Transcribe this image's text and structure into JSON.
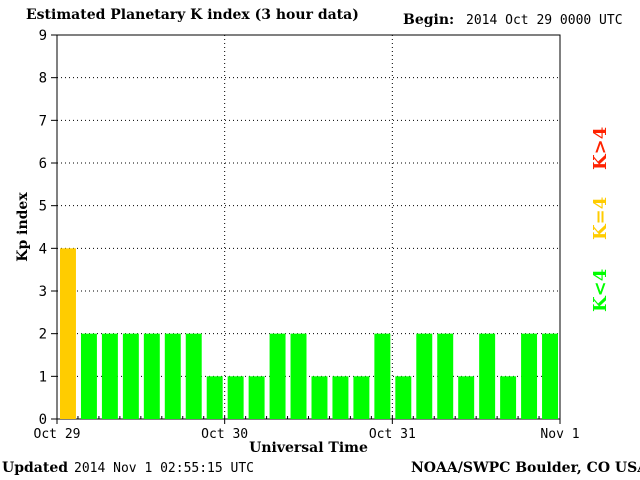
{
  "header": {
    "title": "Estimated Planetary K index (3 hour data)",
    "begin_label": "Begin:",
    "begin_value": "2014 Oct 29 0000 UTC"
  },
  "footer": {
    "updated_label": "Updated",
    "updated_value": "2014 Nov  1 02:55:15 UTC",
    "source": "NOAA/SWPC Boulder, CO USA"
  },
  "legend": {
    "above": "K>4",
    "equal": "K=4",
    "below": "K<4"
  },
  "colors": {
    "below": "#00ff00",
    "equal": "#ffcc00",
    "above": "#ff2200",
    "grid": "#000000"
  },
  "chart_data": {
    "type": "bar",
    "title": "Estimated Planetary K index (3 hour data)",
    "xlabel": "Universal Time",
    "ylabel": "Kp index",
    "ylim": [
      0,
      9
    ],
    "yticks": [
      "0",
      "1",
      "2",
      "3",
      "4",
      "5",
      "6",
      "7",
      "8",
      "9"
    ],
    "xticks": [
      "Oct 29",
      "Oct 30",
      "Oct 31",
      "Nov 1"
    ],
    "grid": true,
    "categories": [
      "Oct 29 00",
      "Oct 29 03",
      "Oct 29 06",
      "Oct 29 09",
      "Oct 29 12",
      "Oct 29 15",
      "Oct 29 18",
      "Oct 29 21",
      "Oct 30 00",
      "Oct 30 03",
      "Oct 30 06",
      "Oct 30 09",
      "Oct 30 12",
      "Oct 30 15",
      "Oct 30 18",
      "Oct 30 21",
      "Oct 31 00",
      "Oct 31 03",
      "Oct 31 06",
      "Oct 31 09",
      "Oct 31 12",
      "Oct 31 15",
      "Oct 31 18",
      "Oct 31 21"
    ],
    "values": [
      4,
      2,
      2,
      2,
      2,
      2,
      2,
      1,
      1,
      1,
      2,
      2,
      1,
      1,
      1,
      2,
      1,
      2,
      2,
      1,
      2,
      1,
      2,
      2
    ]
  }
}
